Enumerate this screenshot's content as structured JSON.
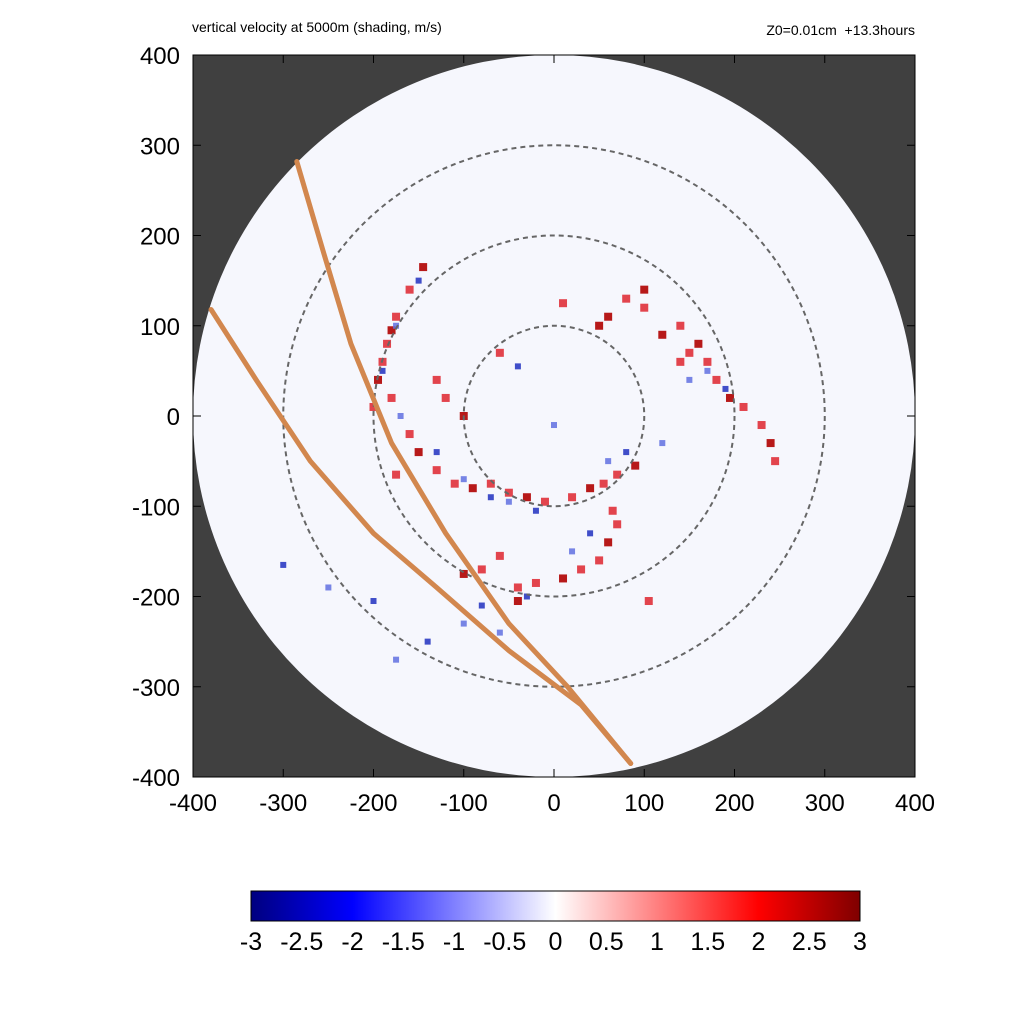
{
  "chart_data": {
    "type": "heatmap",
    "title": "vertical velocity at 5000m (shading, m/s)",
    "annotation": "Z0=0.01cm  +13.3hours",
    "xlim": [
      -400,
      400
    ],
    "ylim": [
      -400,
      400
    ],
    "xticks": [
      -400,
      -300,
      -200,
      -100,
      0,
      100,
      200,
      300,
      400
    ],
    "yticks": [
      -400,
      -300,
      -200,
      -100,
      0,
      100,
      200,
      300,
      400
    ],
    "domain_radius": 400,
    "outside_color": "#404040",
    "range_rings": [
      100,
      200,
      300
    ],
    "colorbar": {
      "ticks": [
        -3,
        -2.5,
        -2,
        -1.5,
        -1,
        -0.5,
        0,
        0.5,
        1,
        1.5,
        2,
        2.5,
        3
      ],
      "range": [
        -3,
        3
      ],
      "colors": [
        "#00007f",
        "#0000ff",
        "#ffffff",
        "#ff0000",
        "#7f0000"
      ]
    },
    "tracks": [
      {
        "color": "#d2874e",
        "points": [
          [
            -285,
            282
          ],
          [
            -255,
            180
          ],
          [
            -225,
            80
          ],
          [
            -180,
            -30
          ],
          [
            -120,
            -130
          ],
          [
            -50,
            -230
          ],
          [
            15,
            -300
          ],
          [
            85,
            -385
          ]
        ]
      },
      {
        "color": "#d2874e",
        "points": [
          [
            -380,
            118
          ],
          [
            -330,
            40
          ],
          [
            -270,
            -50
          ],
          [
            -200,
            -130
          ],
          [
            -130,
            -190
          ],
          [
            -50,
            -260
          ],
          [
            30,
            -320
          ],
          [
            85,
            -385
          ]
        ]
      }
    ],
    "updraft_cells": [
      [
        -145,
        165
      ],
      [
        -160,
        140
      ],
      [
        -175,
        110
      ],
      [
        -180,
        95
      ],
      [
        -185,
        80
      ],
      [
        -190,
        60
      ],
      [
        -195,
        40
      ],
      [
        -180,
        20
      ],
      [
        -160,
        -20
      ],
      [
        -150,
        -40
      ],
      [
        -130,
        -60
      ],
      [
        -110,
        -75
      ],
      [
        -90,
        -80
      ],
      [
        -70,
        -75
      ],
      [
        -50,
        -85
      ],
      [
        -30,
        -90
      ],
      [
        -10,
        -95
      ],
      [
        20,
        -90
      ],
      [
        40,
        -80
      ],
      [
        55,
        -75
      ],
      [
        70,
        -65
      ],
      [
        90,
        -55
      ],
      [
        140,
        60
      ],
      [
        150,
        70
      ],
      [
        160,
        80
      ],
      [
        170,
        60
      ],
      [
        180,
        40
      ],
      [
        195,
        20
      ],
      [
        210,
        10
      ],
      [
        230,
        -10
      ],
      [
        240,
        -30
      ],
      [
        245,
        -50
      ],
      [
        140,
        100
      ],
      [
        120,
        90
      ],
      [
        100,
        120
      ],
      [
        80,
        130
      ],
      [
        60,
        110
      ],
      [
        65,
        -105
      ],
      [
        70,
        -120
      ],
      [
        60,
        -140
      ],
      [
        50,
        -160
      ],
      [
        30,
        -170
      ],
      [
        10,
        -180
      ],
      [
        -20,
        -185
      ],
      [
        -40,
        -190
      ],
      [
        -100,
        -175
      ],
      [
        -80,
        -170
      ],
      [
        -60,
        -155
      ],
      [
        -40,
        -205
      ],
      [
        -130,
        40
      ],
      [
        -120,
        20
      ],
      [
        -100,
        0
      ],
      [
        -60,
        70
      ],
      [
        10,
        125
      ],
      [
        50,
        100
      ],
      [
        105,
        -205
      ],
      [
        -175,
        -65
      ],
      [
        100,
        140
      ],
      [
        -200,
        10
      ]
    ],
    "downdraft_cells": [
      [
        -150,
        150
      ],
      [
        -175,
        100
      ],
      [
        -190,
        50
      ],
      [
        -170,
        0
      ],
      [
        -130,
        -40
      ],
      [
        -100,
        -70
      ],
      [
        -70,
        -90
      ],
      [
        -50,
        -95
      ],
      [
        -20,
        -105
      ],
      [
        60,
        -50
      ],
      [
        80,
        -40
      ],
      [
        170,
        50
      ],
      [
        190,
        30
      ],
      [
        150,
        40
      ],
      [
        -300,
        -165
      ],
      [
        -250,
        -190
      ],
      [
        -200,
        -205
      ],
      [
        -175,
        -270
      ],
      [
        -140,
        -250
      ],
      [
        -100,
        -230
      ],
      [
        -80,
        -210
      ],
      [
        -60,
        -240
      ],
      [
        -30,
        -200
      ],
      [
        20,
        -150
      ],
      [
        40,
        -130
      ],
      [
        120,
        -30
      ],
      [
        -40,
        55
      ],
      [
        0,
        -10
      ]
    ]
  }
}
